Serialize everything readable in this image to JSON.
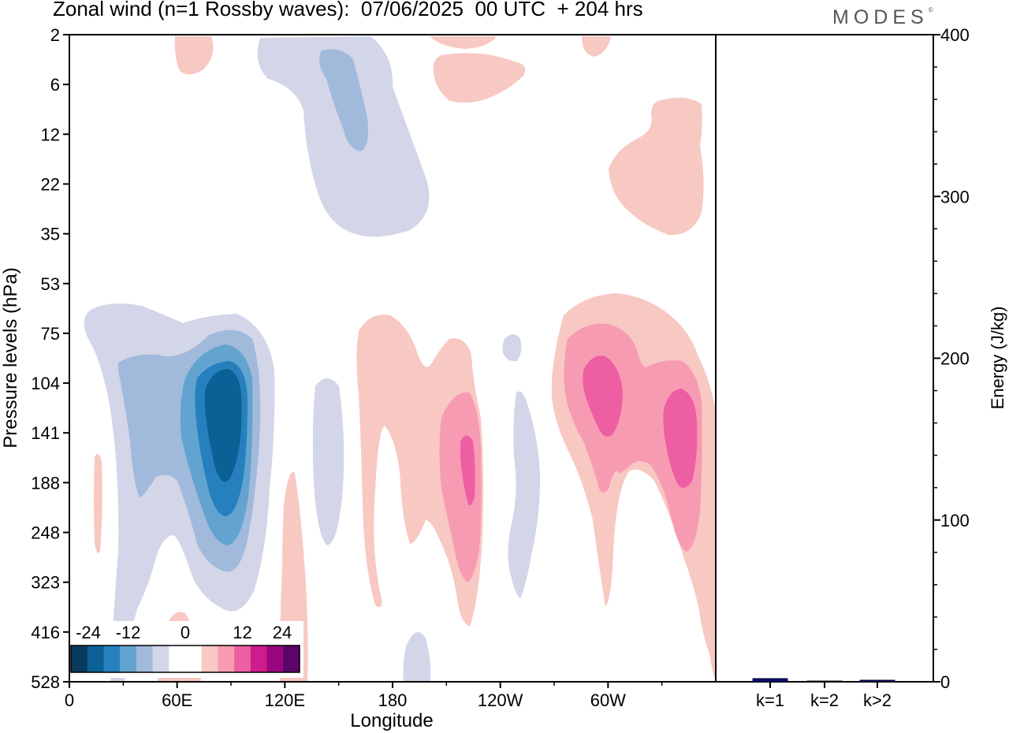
{
  "header": {
    "title": "Zonal wind (n=1 Rossby waves):  07/06/2025  00 UTC  + 204 hrs",
    "logo": "MODES",
    "logo_mark": "©"
  },
  "colors": {
    "neg": [
      "#0a3a5e",
      "#0b6096",
      "#2680be",
      "#62a4cf",
      "#a1b9db",
      "#d3d5e8"
    ],
    "zero": "#ffffff",
    "pos": [
      "#f8c8c3",
      "#f79bb3",
      "#ee5ea2",
      "#cd1c8b",
      "#99067f",
      "#5c046a"
    ],
    "energy_bar": "#0b0b7a"
  },
  "chart_data": [
    {
      "type": "heatmap",
      "title": "",
      "xlabel": "Longitude",
      "ylabel": "Pressure levels (hPa)",
      "x_ticks": [
        "0",
        "60E",
        "120E",
        "180",
        "120W",
        "60W"
      ],
      "x_tick_degrees": [
        0,
        60,
        120,
        180,
        240,
        300
      ],
      "xlim": [
        0,
        360
      ],
      "y_ticks": [
        "2",
        "6",
        "12",
        "22",
        "35",
        "53",
        "75",
        "104",
        "141",
        "188",
        "248",
        "323",
        "416",
        "528"
      ],
      "colorbar": {
        "labels": [
          "-24",
          "-12",
          "0",
          "12",
          "24"
        ],
        "levels": [
          -24,
          -20,
          -16,
          -12,
          -8,
          -4,
          0,
          4,
          8,
          12,
          16,
          20,
          24
        ]
      },
      "features": [
        {
          "sign": "neg",
          "lon": 85,
          "level": "141",
          "peak": -22,
          "note": "strongest easterly core 60E-110E"
        },
        {
          "sign": "neg",
          "lon": 165,
          "level": "12",
          "peak": -8
        },
        {
          "sign": "pos",
          "lon": 225,
          "level": "188",
          "peak": 12
        },
        {
          "sign": "pos",
          "lon": 298,
          "level": "104",
          "peak": 12
        },
        {
          "sign": "pos",
          "lon": 344,
          "level": "141",
          "peak": 12
        },
        {
          "sign": "pos",
          "lon": 335,
          "level": "22",
          "peak": 4
        }
      ]
    },
    {
      "type": "bar",
      "title": "",
      "categories": [
        "k=1",
        "k=2",
        "k>2"
      ],
      "values": [
        2,
        0.5,
        1
      ],
      "ylabel": "Energy (J/kg)",
      "y_ticks": [
        "0",
        "100",
        "200",
        "300",
        "400"
      ],
      "ylim": [
        0,
        400
      ]
    }
  ]
}
